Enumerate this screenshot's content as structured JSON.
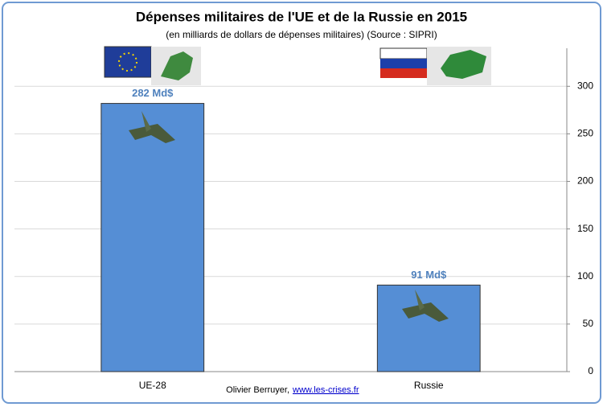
{
  "chart_data": {
    "type": "bar",
    "title": "Dépenses militaires de l'UE et de la Russie en 2015",
    "subtitle": "(en milliards de dollars de dépenses militaires) (Source : SIPRI)",
    "categories": [
      "UE-28",
      "Russie"
    ],
    "values": [
      282,
      91
    ],
    "value_labels": [
      "282 Md$",
      "91 Md$"
    ],
    "color": "#558ed5",
    "ylim": [
      0,
      340
    ],
    "yticks": [
      0,
      50,
      100,
      150,
      200,
      250,
      300
    ],
    "grid": true,
    "credit": "Olivier Berruyer,",
    "credit_link": "www.les-crises.fr"
  }
}
